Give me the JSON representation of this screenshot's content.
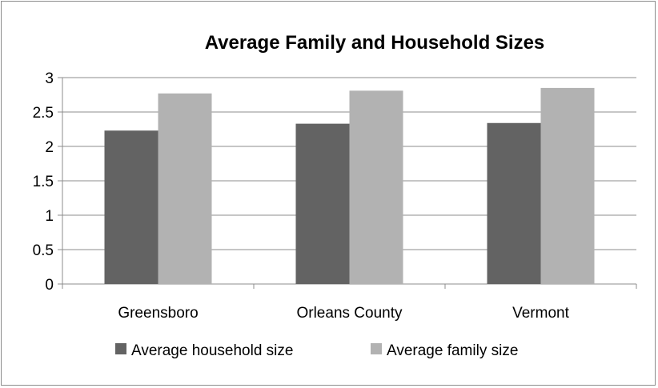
{
  "chart_data": {
    "type": "bar",
    "title": "Average Family and Household Sizes",
    "categories": [
      "Greensboro",
      "Orleans County",
      "Vermont"
    ],
    "series": [
      {
        "name": "Average household size",
        "values": [
          2.23,
          2.33,
          2.34
        ],
        "color": "#636363"
      },
      {
        "name": "Average family size",
        "values": [
          2.77,
          2.81,
          2.85
        ],
        "color": "#b2b2b2"
      }
    ],
    "ylim": [
      0,
      3
    ],
    "yticks": [
      "0",
      "0.5",
      "1",
      "1.5",
      "2",
      "2.5",
      "3"
    ],
    "grid": true,
    "legend_position": "bottom"
  }
}
